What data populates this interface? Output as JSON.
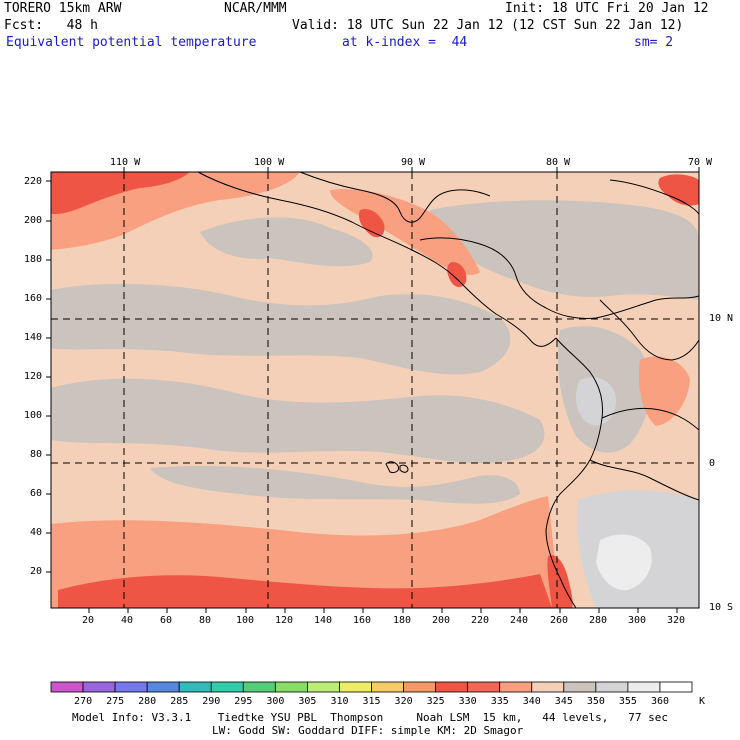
{
  "header": {
    "model": "TORERO 15km ARW",
    "center": "NCAR/MMM",
    "init": "Init: 18 UTC Fri 20 Jan 12",
    "fcst": "Fcst:   48 h",
    "valid": "Valid: 18 UTC Sun 22 Jan 12 (12 CST Sun 22 Jan 12)",
    "field": "Equivalent potential temperature",
    "level": "at k-index =  44",
    "smooth": "sm= 2"
  },
  "map": {
    "top_lon_labels": [
      "110 W",
      "100 W",
      "90 W",
      "80 W",
      "70 W"
    ],
    "right_lat_labels": [
      "10 N",
      "0",
      "10 S"
    ],
    "left_grid_labels": [
      "220",
      "200",
      "180",
      "160",
      "140",
      "120",
      "100",
      "80",
      "60",
      "40",
      "20"
    ],
    "bottom_grid_labels": [
      "20",
      "40",
      "60",
      "80",
      "100",
      "120",
      "140",
      "160",
      "180",
      "200",
      "220",
      "240",
      "260",
      "280",
      "300",
      "320"
    ]
  },
  "colorbar": {
    "labels": [
      "270",
      "275",
      "280",
      "285",
      "290",
      "295",
      "300",
      "305",
      "310",
      "315",
      "320",
      "325",
      "330",
      "335",
      "340",
      "345",
      "350",
      "355",
      "360"
    ],
    "unit": "K",
    "colors": [
      "#cc55cc",
      "#9966dd",
      "#7777ee",
      "#5588dd",
      "#33bbbb",
      "#33ccaa",
      "#55cc77",
      "#88dd66",
      "#bbee77",
      "#eeee66",
      "#f5cc66",
      "#f59966",
      "#ee5544",
      "#f26655",
      "#f8a080",
      "#f5d0b8",
      "#cbc3bd",
      "#d4d4d6",
      "#ededed",
      "#ffffff"
    ]
  },
  "footer": {
    "line1": "Model Info: V3.3.1    Tiedtke YSU PBL  Thompson     Noah LSM  15 km,   44 levels,   77 sec",
    "line2": "LW: Godd SW: Goddard DIFF: simple KM: 2D Smagor"
  }
}
